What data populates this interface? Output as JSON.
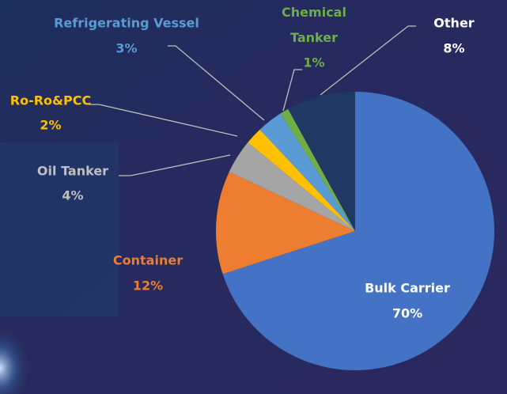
{
  "chart_data": {
    "type": "pie",
    "start_angle": 90,
    "direction": "clockwise",
    "categories": [
      "Bulk Carrier",
      "Container",
      "Oil Tanker",
      "Ro-Ro&PCC",
      "Refrigerating Vessel",
      "Chemical Tanker",
      "Other"
    ],
    "values": [
      70,
      12,
      4,
      2,
      3,
      1,
      8
    ],
    "value_labels": [
      "70%",
      "12%",
      "4%",
      "2%",
      "3%",
      "1%",
      "8%"
    ],
    "colors": [
      "#4472c4",
      "#ed7d31",
      "#a5a5a5",
      "#ffc000",
      "#5b9bd5",
      "#70ad47",
      "#1f3864"
    ],
    "label_colors": [
      "#ffffff",
      "#ed7d31",
      "#bfbfbf",
      "#ffc000",
      "#5b9bd5",
      "#70ad47",
      "#ffffff"
    ]
  }
}
